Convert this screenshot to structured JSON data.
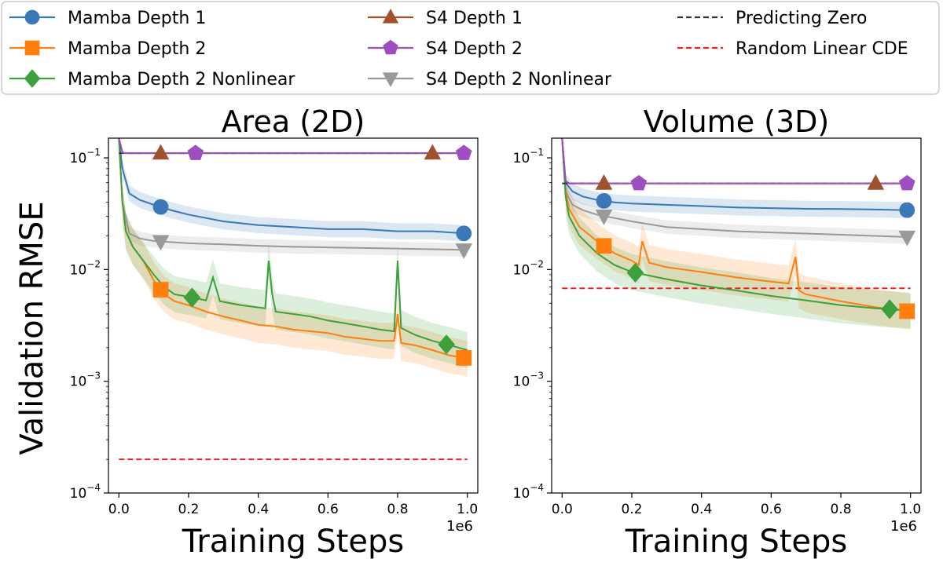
{
  "figure": {
    "ylabel": "Validation RMSE",
    "legend": [
      {
        "key": "mamba1",
        "label": "Mamba Depth 1",
        "color": "#3a78b8",
        "marker": "circle",
        "dash": false
      },
      {
        "key": "mamba2",
        "label": "Mamba Depth 2",
        "color": "#ff7f0e",
        "marker": "square",
        "dash": false
      },
      {
        "key": "mamba2nl",
        "label": "Mamba Depth 2 Nonlinear",
        "color": "#3ca03c",
        "marker": "diamond",
        "dash": false
      },
      {
        "key": "s4_1",
        "label": "S4 Depth 1",
        "color": "#a0522d",
        "marker": "triangle",
        "dash": false
      },
      {
        "key": "s4_2",
        "label": "S4 Depth 2",
        "color": "#9d4fbf",
        "marker": "pentagon",
        "dash": false
      },
      {
        "key": "s4_2nl",
        "label": "S4 Depth 2 Nonlinear",
        "color": "#999999",
        "marker": "triangle-down",
        "dash": false
      },
      {
        "key": "zero",
        "label": "Predicting Zero",
        "color": "#333333",
        "marker": "none",
        "dash": true
      },
      {
        "key": "rlcde",
        "label": "Random Linear CDE",
        "color": "#ee2222",
        "marker": "none",
        "dash": true
      }
    ]
  },
  "chart_data": [
    {
      "type": "line",
      "title": "Area (2D)",
      "xlabel": "Training Steps",
      "x_scale_label": "1e6",
      "yscale": "log",
      "ylim": [
        0.0001,
        0.15
      ],
      "xlim": [
        -0.03,
        1.03
      ],
      "xticks": [
        0.0,
        0.2,
        0.4,
        0.6,
        0.8,
        1.0
      ],
      "xtick_labels": [
        "0.0",
        "0.2",
        "0.4",
        "0.6",
        "0.8",
        "1.0"
      ],
      "ytick_exponents": [
        "-1",
        "-2",
        "-3",
        "-4"
      ],
      "series": [
        {
          "key": "mamba1",
          "x": [
            0.0,
            0.01,
            0.03,
            0.06,
            0.1,
            0.15,
            0.2,
            0.3,
            0.4,
            0.5,
            0.6,
            0.7,
            0.8,
            0.9,
            1.0
          ],
          "y": [
            0.15,
            0.08,
            0.048,
            0.042,
            0.038,
            0.034,
            0.031,
            0.027,
            0.025,
            0.024,
            0.023,
            0.023,
            0.022,
            0.022,
            0.021
          ],
          "markers_x": [
            0.12,
            0.99
          ]
        },
        {
          "key": "mamba2",
          "x": [
            0.0,
            0.01,
            0.02,
            0.04,
            0.07,
            0.1,
            0.13,
            0.16,
            0.2,
            0.25,
            0.3,
            0.35,
            0.4,
            0.45,
            0.5,
            0.55,
            0.6,
            0.65,
            0.7,
            0.75,
            0.79,
            0.8,
            0.81,
            0.85,
            0.9,
            0.95,
            1.0
          ],
          "y": [
            0.15,
            0.04,
            0.022,
            0.016,
            0.012,
            0.008,
            0.006,
            0.0052,
            0.0048,
            0.0042,
            0.0038,
            0.0035,
            0.0032,
            0.0031,
            0.0029,
            0.0028,
            0.0027,
            0.0025,
            0.0024,
            0.0023,
            0.0023,
            0.004,
            0.0022,
            0.0021,
            0.0019,
            0.0017,
            0.0016
          ],
          "markers_x": [
            0.12,
            0.99
          ]
        },
        {
          "key": "mamba2nl",
          "x": [
            0.0,
            0.01,
            0.02,
            0.04,
            0.07,
            0.1,
            0.13,
            0.16,
            0.2,
            0.25,
            0.27,
            0.29,
            0.35,
            0.42,
            0.43,
            0.44,
            0.45,
            0.5,
            0.55,
            0.6,
            0.65,
            0.7,
            0.75,
            0.79,
            0.8,
            0.81,
            0.85,
            0.9,
            0.95,
            1.0
          ],
          "y": [
            0.15,
            0.04,
            0.022,
            0.016,
            0.012,
            0.009,
            0.007,
            0.006,
            0.0057,
            0.0053,
            0.0085,
            0.0052,
            0.0048,
            0.0045,
            0.012,
            0.006,
            0.0042,
            0.004,
            0.0038,
            0.0035,
            0.0033,
            0.0031,
            0.0029,
            0.0028,
            0.012,
            0.003,
            0.0026,
            0.0023,
            0.0021,
            0.0019
          ],
          "markers_x": [
            0.21,
            0.94
          ]
        },
        {
          "key": "s4_1",
          "x": [
            0.0,
            0.01,
            0.02,
            0.05,
            1.0
          ],
          "y": [
            0.15,
            0.112,
            0.11,
            0.11,
            0.11
          ],
          "markers_x": [
            0.12,
            0.9
          ]
        },
        {
          "key": "s4_2",
          "x": [
            0.0,
            0.01,
            0.02,
            0.05,
            1.0
          ],
          "y": [
            0.15,
            0.112,
            0.11,
            0.11,
            0.11
          ],
          "markers_x": [
            0.22,
            0.99
          ]
        },
        {
          "key": "s4_2nl",
          "x": [
            0.0,
            0.01,
            0.03,
            0.06,
            0.1,
            0.2,
            0.3,
            0.4,
            0.5,
            0.6,
            0.7,
            0.8,
            0.9,
            1.0
          ],
          "y": [
            0.15,
            0.04,
            0.021,
            0.019,
            0.018,
            0.0172,
            0.0168,
            0.0163,
            0.016,
            0.0158,
            0.0156,
            0.0154,
            0.0152,
            0.015
          ],
          "markers_x": [
            0.12,
            0.99
          ]
        },
        {
          "key": "zero",
          "x": [
            0.0,
            1.0
          ],
          "y": [
            0.11,
            0.11
          ],
          "markers_x": []
        },
        {
          "key": "rlcde",
          "x": [
            0.0,
            1.0
          ],
          "y": [
            0.0002,
            0.0002
          ],
          "markers_x": []
        }
      ]
    },
    {
      "type": "line",
      "title": "Volume (3D)",
      "xlabel": "Training Steps",
      "x_scale_label": "1e6",
      "yscale": "log",
      "ylim": [
        0.0001,
        0.15
      ],
      "xlim": [
        -0.03,
        1.03
      ],
      "xticks": [
        0.0,
        0.2,
        0.4,
        0.6,
        0.8,
        1.0
      ],
      "xtick_labels": [
        "0.0",
        "0.2",
        "0.4",
        "0.6",
        "0.8",
        "1.0"
      ],
      "ytick_exponents": [
        "-1",
        "-2",
        "-3",
        "-4"
      ],
      "series": [
        {
          "key": "mamba1",
          "x": [
            0.0,
            0.01,
            0.03,
            0.06,
            0.1,
            0.15,
            0.2,
            0.3,
            0.4,
            0.5,
            0.6,
            0.7,
            0.8,
            0.9,
            1.0
          ],
          "y": [
            0.15,
            0.06,
            0.05,
            0.045,
            0.042,
            0.04,
            0.039,
            0.038,
            0.037,
            0.036,
            0.0355,
            0.035,
            0.0348,
            0.0345,
            0.034
          ],
          "markers_x": [
            0.12,
            0.99
          ]
        },
        {
          "key": "mamba2",
          "x": [
            0.0,
            0.01,
            0.02,
            0.05,
            0.1,
            0.15,
            0.2,
            0.22,
            0.23,
            0.25,
            0.3,
            0.4,
            0.5,
            0.6,
            0.65,
            0.67,
            0.68,
            0.7,
            0.8,
            0.9,
            1.0
          ],
          "y": [
            0.15,
            0.05,
            0.035,
            0.024,
            0.018,
            0.014,
            0.012,
            0.011,
            0.018,
            0.0115,
            0.0105,
            0.0095,
            0.0085,
            0.0078,
            0.0075,
            0.013,
            0.0065,
            0.006,
            0.0052,
            0.0046,
            0.0042
          ],
          "markers_x": [
            0.12,
            0.99
          ]
        },
        {
          "key": "mamba2nl",
          "x": [
            0.0,
            0.01,
            0.02,
            0.05,
            0.1,
            0.15,
            0.2,
            0.3,
            0.4,
            0.5,
            0.6,
            0.7,
            0.8,
            0.9,
            1.0
          ],
          "y": [
            0.15,
            0.045,
            0.03,
            0.02,
            0.014,
            0.011,
            0.0095,
            0.0082,
            0.0072,
            0.0065,
            0.0058,
            0.0053,
            0.0048,
            0.0045,
            0.0043
          ],
          "markers_x": [
            0.21,
            0.94
          ]
        },
        {
          "key": "s4_1",
          "x": [
            0.0,
            0.01,
            0.02,
            0.05,
            1.0
          ],
          "y": [
            0.15,
            0.062,
            0.059,
            0.059,
            0.059
          ],
          "markers_x": [
            0.12,
            0.9
          ]
        },
        {
          "key": "s4_2",
          "x": [
            0.0,
            0.01,
            0.02,
            0.05,
            1.0
          ],
          "y": [
            0.15,
            0.062,
            0.059,
            0.059,
            0.059
          ],
          "markers_x": [
            0.22,
            0.99
          ]
        },
        {
          "key": "s4_2nl",
          "x": [
            0.0,
            0.01,
            0.03,
            0.06,
            0.1,
            0.2,
            0.3,
            0.4,
            0.5,
            0.6,
            0.7,
            0.8,
            0.9,
            1.0
          ],
          "y": [
            0.15,
            0.05,
            0.038,
            0.034,
            0.031,
            0.027,
            0.024,
            0.023,
            0.022,
            0.0215,
            0.021,
            0.0205,
            0.02,
            0.0195
          ],
          "markers_x": [
            0.12,
            0.99
          ]
        },
        {
          "key": "zero",
          "x": [
            0.0,
            1.0
          ],
          "y": [
            0.059,
            0.059
          ],
          "markers_x": []
        },
        {
          "key": "rlcde",
          "x": [
            0.0,
            1.0
          ],
          "y": [
            0.0068,
            0.0068
          ],
          "markers_x": []
        }
      ]
    }
  ]
}
